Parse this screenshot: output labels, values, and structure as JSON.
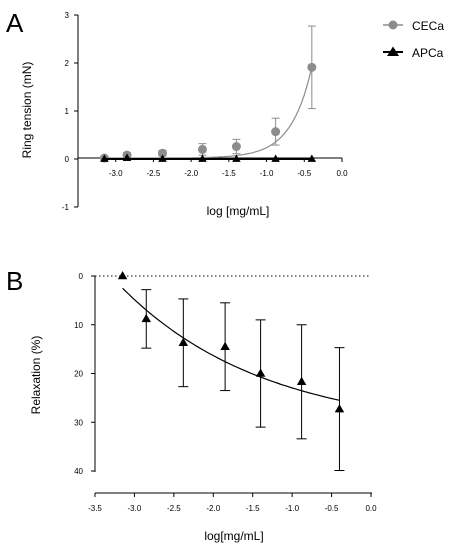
{
  "chart_data": [
    {
      "panel_label": "A",
      "type": "scatter",
      "xlabel": "log [mg/mL]",
      "ylabel": "Ring tension (mN)",
      "xlim": [
        -3.5,
        0.0
      ],
      "ylim": [
        -1,
        3
      ],
      "xticks": [
        "-3.0",
        "-2.5",
        "-2.0",
        "-1.5",
        "-1.0",
        "-0.5",
        "0.0"
      ],
      "yticks": [
        "-1",
        "0",
        "1",
        "2",
        "3"
      ],
      "legend_position": "top-right",
      "series": [
        {
          "name": "CECa",
          "color": "#8c8c8c",
          "marker": "circle",
          "x": [
            -3.15,
            -2.85,
            -2.38,
            -1.85,
            -1.4,
            -0.88,
            -0.4
          ],
          "y": [
            0.02,
            0.08,
            0.12,
            0.2,
            0.26,
            0.57,
            1.91
          ],
          "err": [
            0.02,
            0.05,
            0.06,
            0.12,
            0.15,
            0.28,
            0.86
          ],
          "fit": "sigmoid"
        },
        {
          "name": "APCa",
          "color": "#000000",
          "marker": "triangle",
          "x": [
            -3.15,
            -2.85,
            -2.38,
            -1.85,
            -1.4,
            -0.88,
            -0.4
          ],
          "y": [
            0.0,
            0.02,
            0.0,
            0.0,
            0.0,
            0.0,
            0.0
          ],
          "err": [
            0,
            0,
            0,
            0,
            0,
            0,
            0
          ],
          "fit": "flat"
        }
      ]
    },
    {
      "panel_label": "B",
      "type": "scatter",
      "xlabel": "log[mg/mL]",
      "ylabel": "Relaxation (%)",
      "xlim": [
        -3.5,
        0.0
      ],
      "ylim": [
        0,
        40
      ],
      "y_inverted": true,
      "xticks": [
        "-3.5",
        "-3.0",
        "-2.5",
        "-2.0",
        "-1.5",
        "-1.0",
        "-0.5",
        "0.0"
      ],
      "yticks": [
        "0",
        "10",
        "20",
        "30",
        "40"
      ],
      "series": [
        {
          "name": "",
          "color": "#000000",
          "marker": "triangle",
          "x": [
            -3.15,
            -2.85,
            -2.38,
            -1.85,
            -1.4,
            -0.88,
            -0.4
          ],
          "y": [
            0.0,
            8.8,
            13.7,
            14.5,
            20.0,
            21.7,
            27.3
          ],
          "err": [
            0.0,
            6.0,
            9.0,
            9.0,
            11.0,
            11.7,
            12.6
          ],
          "fit": "curve"
        }
      ]
    }
  ]
}
